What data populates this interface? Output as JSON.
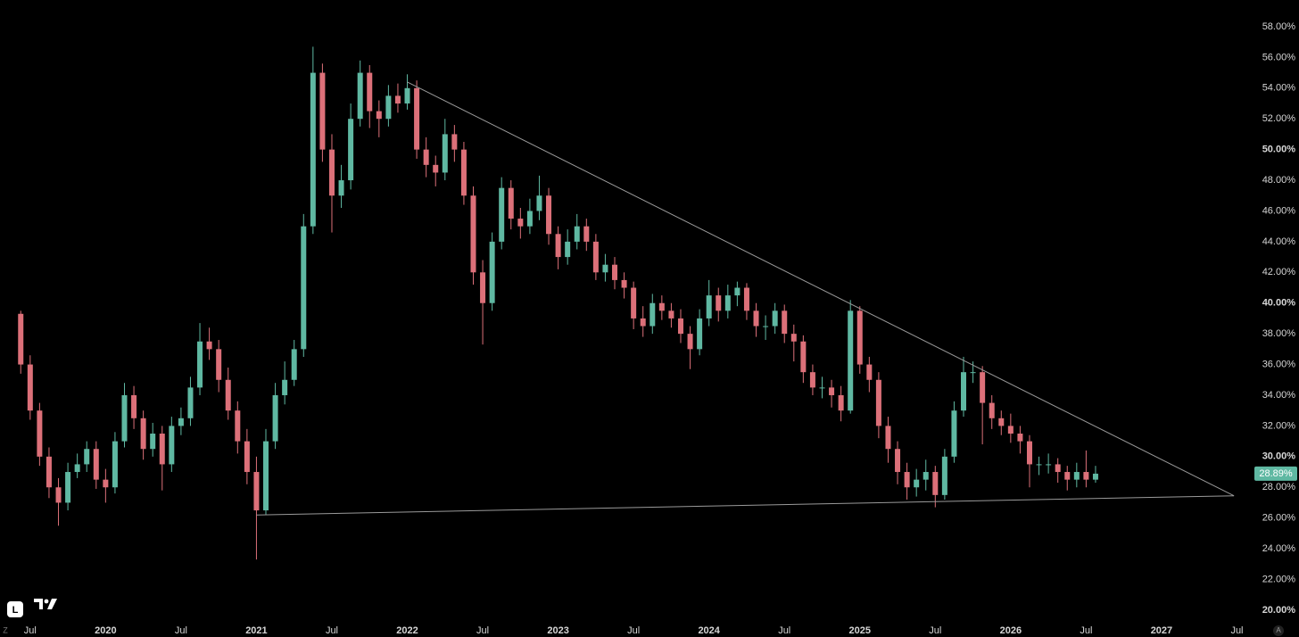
{
  "chart_data": {
    "type": "candlestick",
    "x": [
      2019.4375,
      2019.5,
      2019.5625,
      2019.625,
      2019.6875,
      2019.75,
      2019.8125,
      2019.875,
      2019.9375,
      2020,
      2020.0625,
      2020.125,
      2020.1875,
      2020.25,
      2020.3125,
      2020.375,
      2020.4375,
      2020.5,
      2020.5625,
      2020.625,
      2020.6875,
      2020.75,
      2020.8125,
      2020.875,
      2020.9375,
      2021,
      2021.0625,
      2021.125,
      2021.1875,
      2021.25,
      2021.3125,
      2021.375,
      2021.4375,
      2021.5,
      2021.5625,
      2021.625,
      2021.6875,
      2021.75,
      2021.8125,
      2021.875,
      2021.9375,
      2022,
      2022.0625,
      2022.125,
      2022.1875,
      2022.25,
      2022.3125,
      2022.375,
      2022.4375,
      2022.5,
      2022.5625,
      2022.625,
      2022.6875,
      2022.75,
      2022.8125,
      2022.875,
      2022.9375,
      2023,
      2023.0625,
      2023.125,
      2023.1875,
      2023.25,
      2023.3125,
      2023.375,
      2023.4375,
      2023.5,
      2023.5625,
      2023.625,
      2023.6875,
      2023.75,
      2023.8125,
      2023.875,
      2023.9375,
      2024,
      2024.0625,
      2024.125,
      2024.1875,
      2024.25,
      2024.3125,
      2024.375,
      2024.4375,
      2024.5,
      2024.5625,
      2024.625,
      2024.6875,
      2024.75,
      2024.8125,
      2024.875,
      2024.9375,
      2025,
      2025.0625,
      2025.125,
      2025.1875,
      2025.25,
      2025.3125,
      2025.375,
      2025.4375,
      2025.5,
      2025.5625,
      2025.625,
      2025.6875,
      2025.75,
      2025.8125,
      2025.875,
      2025.9375,
      2026,
      2026.0625,
      2026.125,
      2026.1875,
      2026.25,
      2026.3125,
      2026.375,
      2026.4375,
      2026.5,
      2026.5625
    ],
    "open": [
      39.3,
      36,
      33,
      30,
      28,
      27,
      29,
      29.5,
      30.5,
      28.5,
      28,
      31,
      34,
      32.5,
      30.5,
      31.5,
      29.5,
      32,
      32.5,
      34.5,
      37.5,
      37,
      35,
      33,
      31,
      29,
      26.5,
      31,
      34,
      35,
      37,
      45,
      55,
      50,
      47,
      48,
      52,
      55,
      52.5,
      52,
      53.5,
      53,
      54,
      50,
      49,
      48.5,
      51,
      50,
      47,
      42,
      40,
      44,
      47.5,
      45.5,
      45,
      46,
      47,
      44.5,
      43,
      44,
      45,
      44,
      42,
      42.5,
      41.5,
      41,
      39,
      38.5,
      40,
      39.5,
      39,
      38,
      37,
      39,
      40.5,
      39.5,
      40.5,
      41,
      39.5,
      38.5,
      38.5,
      39.5,
      38,
      37.5,
      35.5,
      34.5,
      34.5,
      34,
      33,
      39.5,
      36,
      35,
      32,
      30.5,
      29,
      28,
      28.5,
      29,
      27.5,
      30,
      33,
      35.5,
      35.5,
      33.5,
      32.5,
      32,
      31.5,
      31,
      29.5,
      29.5,
      29.5,
      29,
      28.5,
      29,
      28.5
    ],
    "high": [
      39.5,
      36.6,
      33.5,
      30.6,
      28.6,
      29.6,
      30.2,
      31,
      31,
      29.2,
      31.6,
      34.8,
      34.6,
      33,
      32.2,
      32,
      32.6,
      33.2,
      35.2,
      38.7,
      38.4,
      37.6,
      35.8,
      33.6,
      31.8,
      30,
      31.8,
      34.8,
      36.2,
      37.6,
      45.8,
      56.7,
      55.6,
      51,
      49,
      53,
      55.8,
      55.5,
      53.2,
      54.2,
      54.3,
      54.9,
      54.5,
      50.8,
      49.6,
      52,
      51.6,
      50.5,
      47.6,
      42.8,
      44.6,
      48.2,
      48,
      46.2,
      46.8,
      48.3,
      47.5,
      45,
      44.8,
      45.8,
      45.5,
      44.5,
      43.2,
      43,
      42,
      41.4,
      39.8,
      40.6,
      40.5,
      40,
      39.6,
      38.5,
      39.6,
      41.5,
      41,
      41.2,
      41.4,
      41.3,
      40,
      39.2,
      40,
      39.9,
      38.6,
      37.9,
      36,
      35.2,
      35,
      34.6,
      40.2,
      39.8,
      36.5,
      35.5,
      32.6,
      31,
      29.6,
      29.2,
      29.8,
      29.4,
      30.5,
      33.6,
      36.5,
      36.2,
      35.9,
      34,
      33,
      32.8,
      32,
      31.4,
      30,
      30.2,
      29.9,
      29.4,
      29.6,
      30.4,
      29.4
    ],
    "low": [
      35.4,
      32.4,
      29.4,
      27.3,
      25.5,
      26.5,
      28.6,
      29,
      27.9,
      27,
      27.6,
      30.6,
      31.8,
      29.8,
      30,
      27.8,
      29,
      31.4,
      32,
      34,
      36.3,
      34.2,
      32.4,
      30.2,
      28.2,
      23.3,
      26.2,
      30.5,
      33.4,
      34.6,
      36.5,
      44.5,
      49.2,
      44.6,
      46.2,
      47.4,
      51.5,
      51.4,
      50.8,
      51.5,
      52.4,
      52.6,
      49.4,
      48.2,
      47.6,
      48,
      49.2,
      46.4,
      41.2,
      37.3,
      39.5,
      43.5,
      44.8,
      44.2,
      44.5,
      45.4,
      43.8,
      42.2,
      42.5,
      43.5,
      43.4,
      41.5,
      41.4,
      40.9,
      40.3,
      38.3,
      37.8,
      38,
      38.9,
      38.4,
      37.4,
      35.7,
      36.6,
      38.5,
      38.8,
      39,
      39.8,
      38.9,
      37.8,
      37.6,
      38,
      37.4,
      36.2,
      34.8,
      34,
      33.8,
      33.2,
      32.3,
      32.8,
      35.4,
      34.2,
      31.2,
      29.6,
      28.2,
      27.2,
      27.4,
      27.8,
      26.7,
      27.2,
      29.6,
      32.6,
      34.8,
      30.8,
      31.8,
      31.4,
      30.9,
      30.2,
      28,
      28.8,
      28.9,
      28.3,
      27.8,
      28,
      28,
      28.3
    ],
    "close": [
      36,
      33,
      30,
      28,
      27,
      29,
      29.5,
      30.5,
      28.5,
      28,
      31,
      34,
      32.5,
      30.5,
      31.5,
      29.5,
      32,
      32.5,
      34.5,
      37.5,
      37,
      35,
      33,
      31,
      29,
      26.5,
      31,
      34,
      35,
      37,
      45,
      55,
      50,
      47,
      48,
      52,
      55,
      52.5,
      52,
      53.5,
      53,
      54,
      50,
      49,
      48.5,
      51,
      50,
      47,
      42,
      40,
      44,
      47.5,
      45.5,
      45,
      46,
      47,
      44.5,
      43,
      44,
      45,
      44,
      42,
      42.5,
      41.5,
      41,
      39,
      38.5,
      40,
      39.5,
      39,
      38,
      37,
      39,
      40.5,
      39.5,
      40.5,
      41,
      39.5,
      38.5,
      38.5,
      39.5,
      38,
      37.5,
      35.5,
      34.5,
      34.5,
      34,
      33,
      39.5,
      36,
      35,
      32,
      30.5,
      29,
      28,
      28.5,
      29,
      27.5,
      30,
      33,
      35.5,
      35.5,
      33.5,
      32.5,
      32,
      31.5,
      31,
      29.5,
      29.5,
      29.5,
      29,
      28.5,
      29,
      28.5,
      28.89
    ],
    "up_color": "#5fb8a2",
    "down_color": "#dc7079",
    "xlim": [
      2019.3,
      2027.58
    ],
    "ylim": [
      19.24,
      59.74
    ],
    "xticks": [
      {
        "value": 2019.5,
        "label": "Jul"
      },
      2020,
      {
        "value": 2020.5,
        "label": "Jul"
      },
      2021,
      {
        "value": 2021.5,
        "label": "Jul"
      },
      2022,
      {
        "value": 2022.5,
        "label": "Jul"
      },
      2023,
      {
        "value": 2023.5,
        "label": "Jul"
      },
      2024,
      {
        "value": 2024.5,
        "label": "Jul"
      },
      2025,
      {
        "value": 2025.5,
        "label": "Jul"
      },
      2026,
      {
        "value": 2026.5,
        "label": "Jul"
      },
      2027,
      {
        "value": 2027.5,
        "label": "Jul"
      }
    ],
    "yticks": [
      {
        "value": 20,
        "label": "20.00%"
      },
      {
        "value": 22,
        "label": "22.00%"
      },
      {
        "value": 24,
        "label": "24.00%"
      },
      {
        "value": 26,
        "label": "26.00%"
      },
      {
        "value": 28,
        "label": "28.00%"
      },
      {
        "value": 30,
        "label": "30.00%"
      },
      {
        "value": 32,
        "label": "32.00%"
      },
      {
        "value": 34,
        "label": "34.00%"
      },
      {
        "value": 36,
        "label": "36.00%"
      },
      {
        "value": 38,
        "label": "38.00%"
      },
      {
        "value": 40,
        "label": "40.00%"
      },
      {
        "value": 42,
        "label": "42.00%"
      },
      {
        "value": 44,
        "label": "44.00%"
      },
      {
        "value": 46,
        "label": "46.00%"
      },
      {
        "value": 48,
        "label": "48.00%"
      },
      {
        "value": 50,
        "label": "50.00%"
      },
      {
        "value": 52,
        "label": "52.00%"
      },
      {
        "value": 54,
        "label": "54.00%"
      },
      {
        "value": 56,
        "label": "56.00%"
      },
      {
        "value": 58,
        "label": "58.00%"
      }
    ],
    "last_price": {
      "value": 28.89,
      "label": "28.89%",
      "color": "#5fb8a2"
    },
    "trendlines": [
      {
        "x": [
          2021.0,
          2027.48
        ],
        "y": [
          26.2,
          27.45
        ],
        "color": "#9a9a9a"
      },
      {
        "x": [
          2022.0,
          2027.48
        ],
        "y": [
          54.4,
          27.45
        ],
        "color": "#9a9a9a"
      }
    ],
    "ui": {
      "log_button": "L",
      "corner_left": "Z",
      "corner_right": "A"
    }
  }
}
